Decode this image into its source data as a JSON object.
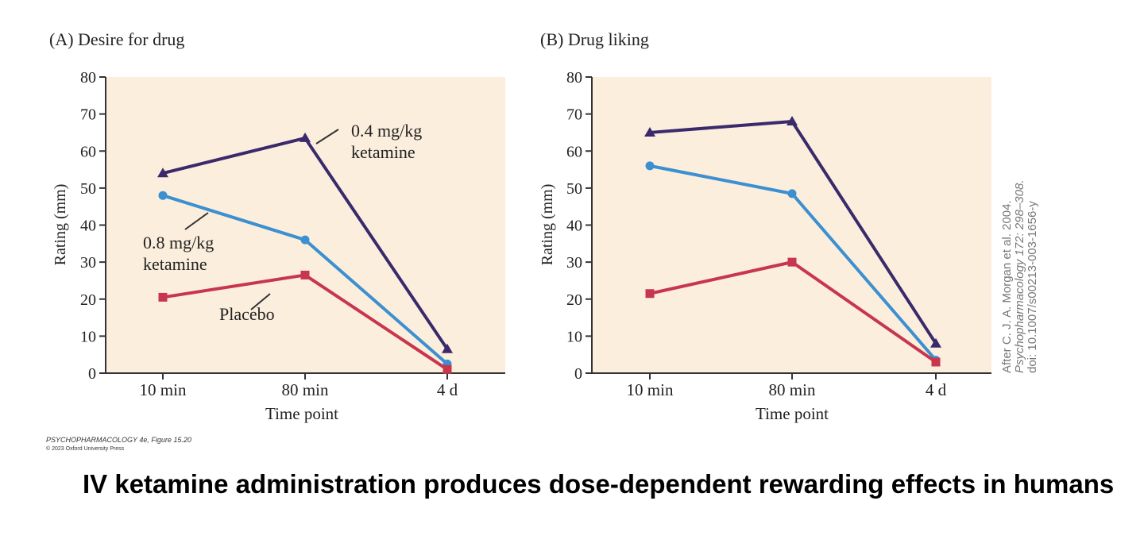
{
  "colors": {
    "panel_bg": "#fbeedd",
    "axis": "#333333",
    "high_dose": "#3b2a6b",
    "low_dose": "#3c8fd0",
    "placebo": "#c7364d"
  },
  "chart_data": [
    {
      "type": "line",
      "title": "(A)  Desire for drug",
      "xlabel": "Time point",
      "ylabel": "Rating (mm)",
      "categories": [
        "10 min",
        "80 min",
        "4 d"
      ],
      "ylim": [
        0,
        80
      ],
      "yticks": [
        0,
        10,
        20,
        30,
        40,
        50,
        60,
        70,
        80
      ],
      "series": [
        {
          "name": "0.4 mg/kg ketamine",
          "values": [
            54,
            63.5,
            6.5
          ],
          "marker": "triangle",
          "color": "#3b2a6b"
        },
        {
          "name": "0.8 mg/kg ketamine",
          "values": [
            48,
            36,
            2.5
          ],
          "marker": "circle",
          "color": "#3c8fd0"
        },
        {
          "name": "Placebo",
          "values": [
            20.5,
            26.5,
            1
          ],
          "marker": "square",
          "color": "#c7364d"
        }
      ],
      "annotations": [
        {
          "series": 0,
          "lines": [
            "0.4 mg/kg",
            "ketamine"
          ]
        },
        {
          "series": 1,
          "lines": [
            "0.8 mg/kg",
            "ketamine"
          ]
        },
        {
          "series": 2,
          "lines": [
            "Placebo"
          ]
        }
      ]
    },
    {
      "type": "line",
      "title": "(B)  Drug liking",
      "xlabel": "Time point",
      "ylabel": "Rating (mm)",
      "categories": [
        "10 min",
        "80 min",
        "4 d"
      ],
      "ylim": [
        0,
        80
      ],
      "yticks": [
        0,
        10,
        20,
        30,
        40,
        50,
        60,
        70,
        80
      ],
      "series": [
        {
          "name": "0.4 mg/kg ketamine",
          "values": [
            65,
            68,
            8
          ],
          "marker": "triangle",
          "color": "#3b2a6b"
        },
        {
          "name": "0.8 mg/kg ketamine",
          "values": [
            56,
            48.5,
            3.5
          ],
          "marker": "circle",
          "color": "#3c8fd0"
        },
        {
          "name": "Placebo",
          "values": [
            21.5,
            30,
            3
          ],
          "marker": "square",
          "color": "#c7364d"
        }
      ]
    }
  ],
  "credit": {
    "line1": "PSYCHOPHARMACOLOGY 4e, Figure 15.20",
    "line2": "© 2023 Oxford University Press"
  },
  "side_credit": {
    "line1": "After C. J. A. Morgan et al. 2004.",
    "line2": "Psychopharmacology 172: 298–308.",
    "line3": "doi: 10.1007/s00213-003-1656-y"
  },
  "caption": "IV ketamine administration produces dose-dependent rewarding effects in humans"
}
